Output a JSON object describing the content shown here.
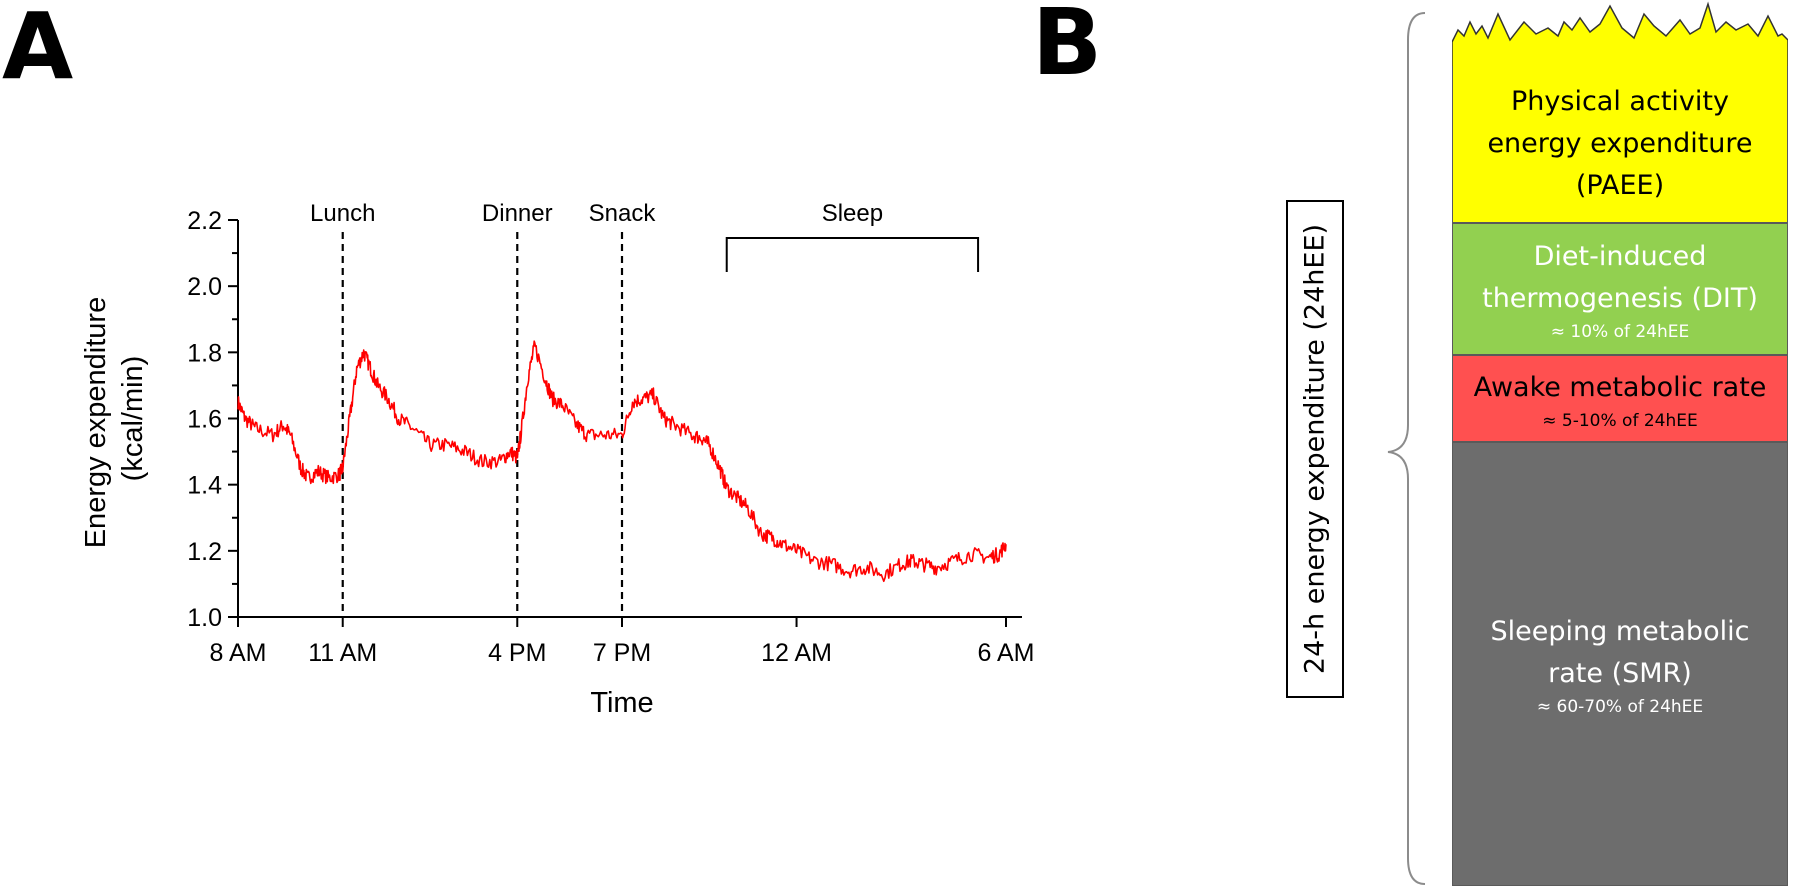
{
  "panel_a": {
    "letter": "A",
    "chart_data": {
      "type": "line",
      "title": "",
      "xlabel": "Time",
      "ylabel_line1": "Energy expenditure",
      "ylabel_line2": "(kcal/min)",
      "ylim": [
        1.0,
        2.2
      ],
      "yticks": [
        1.0,
        1.2,
        1.4,
        1.6,
        1.8,
        2.0,
        2.2
      ],
      "ytick_labels": [
        "1.0",
        "1.2",
        "1.4",
        "1.6",
        "1.8",
        "2.0",
        "2.2"
      ],
      "x_unit": "hours after 8 AM",
      "xlim": [
        0,
        22
      ],
      "xticks": [
        0,
        3,
        8,
        11,
        16,
        22
      ],
      "xtick_labels": [
        "8 AM",
        "11 AM",
        "4 PM",
        "7 PM",
        "12 AM",
        "6 AM"
      ],
      "series": [
        {
          "color": "#ff0000",
          "x": [
            0,
            0.2,
            0.5,
            1.0,
            1.3,
            1.5,
            1.8,
            2.0,
            2.3,
            2.6,
            2.9,
            3.0,
            3.2,
            3.4,
            3.6,
            3.8,
            4.0,
            4.3,
            4.6,
            5.0,
            5.5,
            6.0,
            6.5,
            7.0,
            7.5,
            7.8,
            8.0,
            8.1,
            8.3,
            8.5,
            8.8,
            9.0,
            9.3,
            9.7,
            10.0,
            10.5,
            11.0,
            11.3,
            11.6,
            11.9,
            12.2,
            12.5,
            13.0,
            13.3,
            13.5,
            13.8,
            14.0,
            14.3,
            14.6,
            15.0,
            15.3,
            15.6,
            16.0,
            16.5,
            17.0,
            17.5,
            18.0,
            18.5,
            19.0,
            19.3,
            19.6,
            20.0,
            20.5,
            21.0,
            21.5,
            21.8,
            22.0
          ],
          "y": [
            1.65,
            1.6,
            1.57,
            1.55,
            1.58,
            1.55,
            1.45,
            1.42,
            1.44,
            1.42,
            1.43,
            1.45,
            1.6,
            1.75,
            1.8,
            1.75,
            1.7,
            1.66,
            1.6,
            1.57,
            1.52,
            1.52,
            1.5,
            1.47,
            1.47,
            1.5,
            1.48,
            1.55,
            1.72,
            1.82,
            1.72,
            1.66,
            1.64,
            1.58,
            1.55,
            1.55,
            1.55,
            1.65,
            1.66,
            1.67,
            1.6,
            1.58,
            1.55,
            1.54,
            1.52,
            1.45,
            1.39,
            1.36,
            1.33,
            1.25,
            1.24,
            1.22,
            1.2,
            1.17,
            1.16,
            1.14,
            1.15,
            1.13,
            1.16,
            1.17,
            1.16,
            1.15,
            1.17,
            1.19,
            1.18,
            1.19,
            1.22
          ]
        }
      ],
      "annotations": [
        {
          "label": "Lunch",
          "x": 3
        },
        {
          "label": "Dinner",
          "x": 8
        },
        {
          "label": "Snack",
          "x": 11
        }
      ],
      "bracket": {
        "label": "Sleep",
        "x_start": 14,
        "x_end": 21.2
      }
    }
  },
  "panel_b": {
    "letter": "B",
    "total_label": "24-h energy expenditure (24hEE)",
    "components": {
      "paee": {
        "line1": "Physical activity",
        "line2": "energy expenditure",
        "line3": "(PAEE)",
        "color": "#ffff00"
      },
      "dit": {
        "line1": "Diet-induced",
        "line2": "thermogenesis (DIT)",
        "note": "≈ 10% of 24hEE",
        "color": "#92d050"
      },
      "awake": {
        "line1": "Awake metabolic rate",
        "note": "≈ 5-10% of 24hEE",
        "color": "#ff5050"
      },
      "smr": {
        "line1": "Sleeping metabolic",
        "line2": "rate (SMR)",
        "note": "≈ 60-70% of 24hEE",
        "color": "#6d6d6d"
      }
    }
  }
}
